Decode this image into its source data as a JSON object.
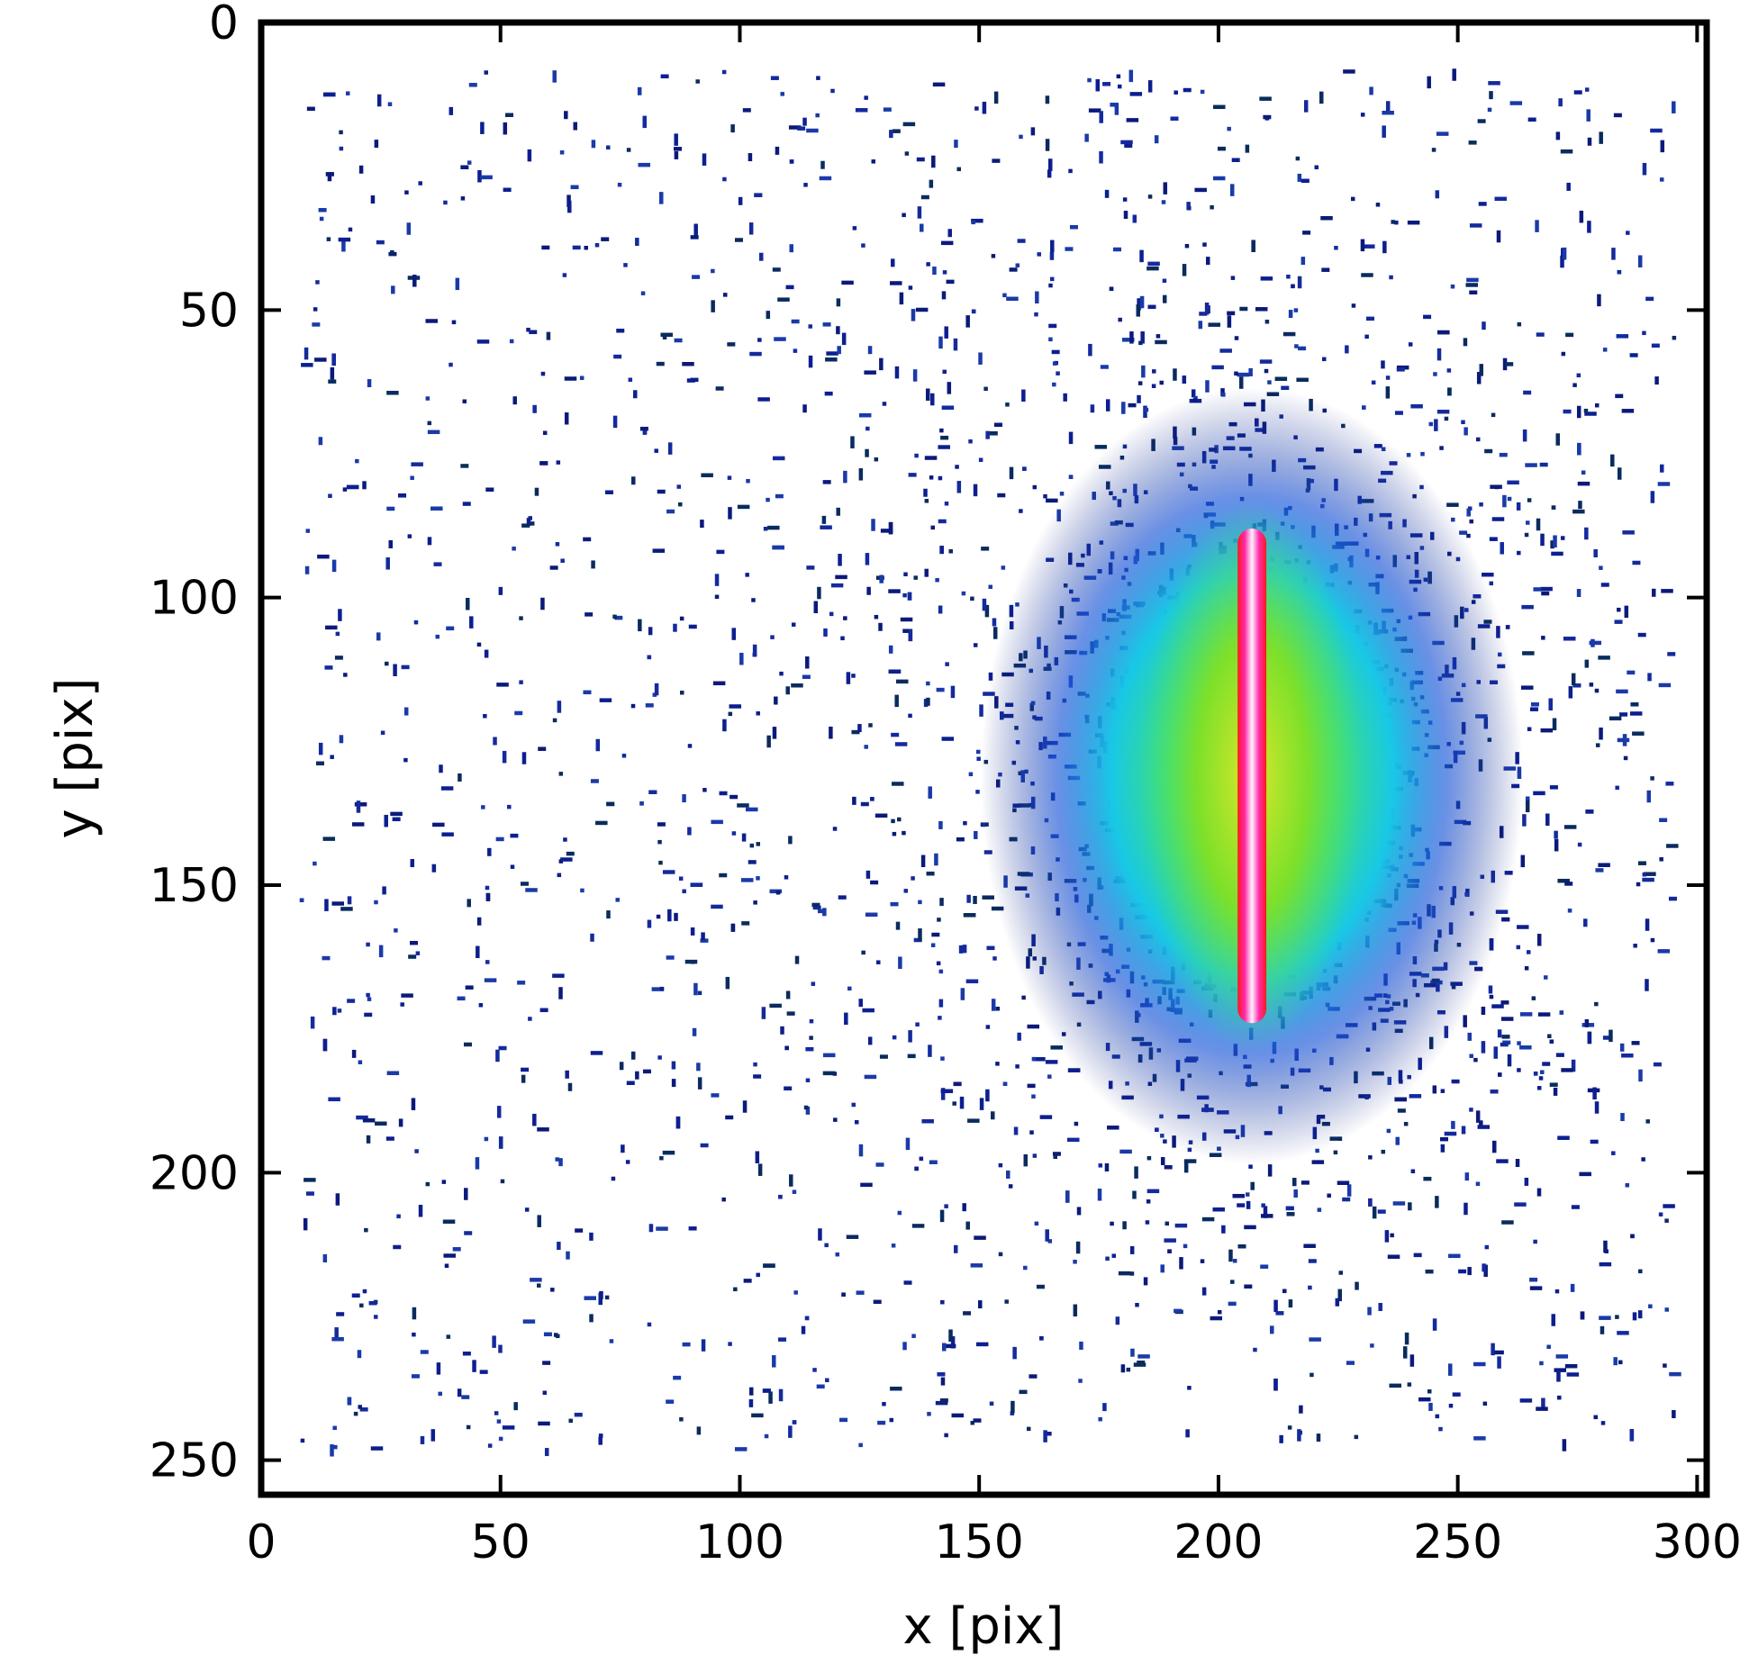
{
  "chart_data": {
    "type": "heatmap",
    "title": "",
    "xlabel": "x [pix]",
    "ylabel": "y [pix]",
    "xlim": [
      0,
      302
    ],
    "ylim": [
      256,
      0
    ],
    "y_axis_inverted": true,
    "x_ticks": [
      0,
      50,
      100,
      150,
      200,
      250,
      300
    ],
    "y_ticks": [
      0,
      50,
      100,
      150,
      200,
      250
    ],
    "x_tick_labels": [
      "0",
      "50",
      "100",
      "150",
      "200",
      "250",
      "300"
    ],
    "y_tick_labels": [
      "0",
      "50",
      "100",
      "150",
      "200",
      "250"
    ],
    "grid": false,
    "colormap": [
      "#ffffff",
      "#0b1a7a",
      "#1a55d8",
      "#18c8e6",
      "#22e08a",
      "#9be81e",
      "#ff1a1a",
      "#ff33cc",
      "#ffffff"
    ],
    "detector_region": {
      "x": [
        8,
        295
      ],
      "y": [
        8,
        248
      ]
    },
    "hot_core": {
      "x": [
        204,
        210
      ],
      "y": [
        88,
        174
      ],
      "center_x": 207,
      "center_y": 131
    },
    "halo": {
      "center_x": 207,
      "center_y": 131,
      "sigma_x": 42,
      "sigma_y": 50
    },
    "background_noise": "sparse low-count speckle across detector region"
  }
}
